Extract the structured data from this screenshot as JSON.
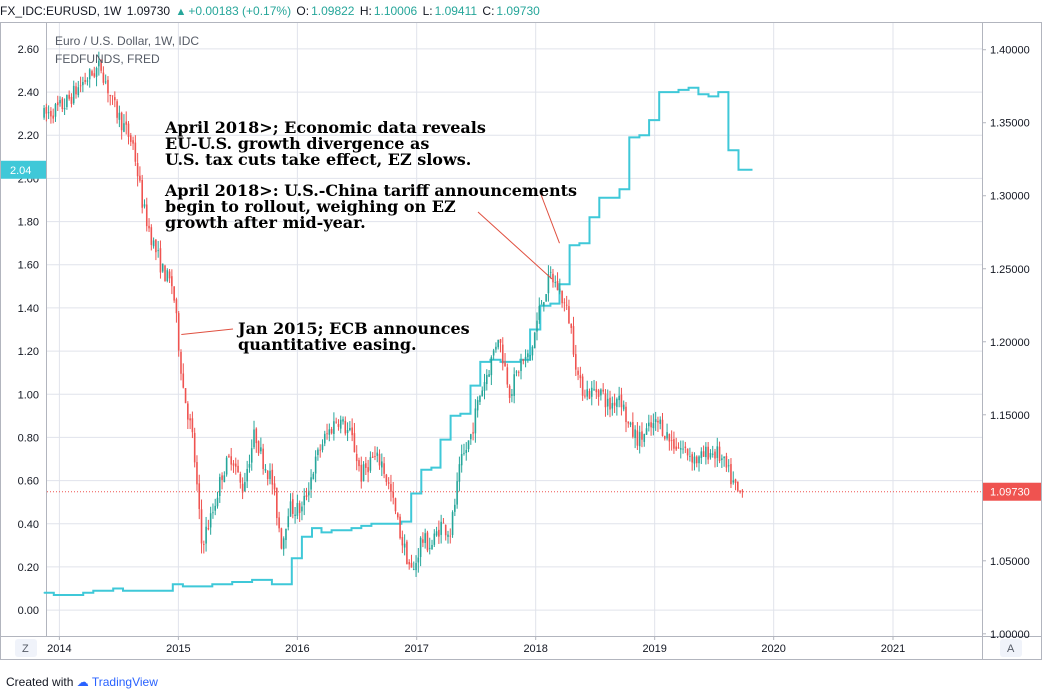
{
  "header": {
    "symbol": "FX_IDC:EURUSD, 1W",
    "last": "1.09730",
    "change": "+0.00183 (+0.17%)",
    "o_label": "O:",
    "o_value": "1.09822",
    "h_label": "H:",
    "h_value": "1.10006",
    "l_label": "L:",
    "l_value": "1.09411",
    "c_label": "C:",
    "c_value": "1.09730"
  },
  "footer": {
    "created_with": "Created with",
    "brand": "TradingView"
  },
  "buttons": {
    "left": "Z",
    "right": "A"
  },
  "colors": {
    "up": "#26a69a",
    "down": "#ef5350",
    "fedfunds": "#3fc8d8",
    "grid": "#e0e3eb",
    "price_line": "#ef5350",
    "annotation_line": "#e05040"
  },
  "chart_data": {
    "type": "line",
    "legend": [
      "Euro / U.S. Dollar, 1W, IDC",
      "FEDFUNDS, FRED"
    ],
    "x_ticks": [
      "2014",
      "2015",
      "2016",
      "2017",
      "2018",
      "2019",
      "2020",
      "2021"
    ],
    "left_axis": {
      "ylim": [
        -0.12,
        2.72
      ],
      "ticks": [
        "2.60",
        "2.40",
        "2.20",
        "2.00",
        "1.80",
        "1.60",
        "1.40",
        "1.20",
        "1.00",
        "0.80",
        "0.60",
        "0.40",
        "0.20",
        "0.00"
      ]
    },
    "right_axis": {
      "ylim": [
        0.9985,
        1.4183
      ],
      "ticks": [
        "1.40000",
        "1.35000",
        "1.30000",
        "1.25000",
        "1.20000",
        "1.15000",
        "1.10000",
        "1.05000",
        "1.00000"
      ]
    },
    "last_price_label": "1.09730",
    "fedfunds_last_label": "2.04",
    "series": [
      {
        "name": "FEDFUNDS, FRED",
        "axis": "left",
        "x": [
          "2013-11-15",
          "2013-12-15",
          "2014-01-15",
          "2014-02-15",
          "2014-03-15",
          "2014-04-15",
          "2014-05-15",
          "2014-06-15",
          "2014-07-15",
          "2014-08-15",
          "2014-09-15",
          "2014-10-15",
          "2014-11-15",
          "2014-12-15",
          "2015-01-15",
          "2015-02-15",
          "2015-03-15",
          "2015-04-15",
          "2015-05-15",
          "2015-06-15",
          "2015-07-15",
          "2015-08-15",
          "2015-09-15",
          "2015-10-15",
          "2015-11-15",
          "2015-12-15",
          "2016-01-15",
          "2016-02-15",
          "2016-03-15",
          "2016-04-15",
          "2016-05-15",
          "2016-06-15",
          "2016-07-15",
          "2016-08-15",
          "2016-09-15",
          "2016-10-15",
          "2016-11-15",
          "2016-12-15",
          "2017-01-15",
          "2017-02-15",
          "2017-03-15",
          "2017-04-15",
          "2017-05-15",
          "2017-06-15",
          "2017-07-15",
          "2017-08-15",
          "2017-09-15",
          "2017-10-15",
          "2017-11-15",
          "2017-12-15",
          "2018-01-15",
          "2018-02-15",
          "2018-03-15",
          "2018-04-15",
          "2018-05-15",
          "2018-06-15",
          "2018-07-15",
          "2018-08-15",
          "2018-09-15",
          "2018-10-15",
          "2018-11-15",
          "2018-12-15",
          "2019-01-15",
          "2019-02-15",
          "2019-03-15",
          "2019-04-15",
          "2019-05-15",
          "2019-06-15",
          "2019-07-15",
          "2019-08-15",
          "2019-09-15"
        ],
        "values": [
          0.08,
          0.07,
          0.07,
          0.07,
          0.08,
          0.09,
          0.09,
          0.1,
          0.09,
          0.09,
          0.09,
          0.09,
          0.09,
          0.12,
          0.11,
          0.11,
          0.11,
          0.12,
          0.12,
          0.13,
          0.13,
          0.14,
          0.14,
          0.12,
          0.12,
          0.24,
          0.34,
          0.38,
          0.36,
          0.37,
          0.37,
          0.38,
          0.39,
          0.4,
          0.4,
          0.4,
          0.41,
          0.54,
          0.65,
          0.66,
          0.79,
          0.9,
          0.91,
          1.04,
          1.15,
          1.16,
          1.15,
          1.15,
          1.16,
          1.3,
          1.41,
          1.42,
          1.51,
          1.69,
          1.7,
          1.82,
          1.91,
          1.91,
          1.95,
          2.19,
          2.2,
          2.27,
          2.4,
          2.4,
          2.41,
          2.42,
          2.39,
          2.38,
          2.4,
          2.13,
          2.04
        ]
      },
      {
        "name": "Euro / U.S. Dollar, 1W, IDC",
        "axis": "right",
        "x": [
          "2013-11-15",
          "2014-01-15",
          "2014-03-15",
          "2014-05-08",
          "2014-06-15",
          "2014-08-15",
          "2014-09-15",
          "2014-10-15",
          "2014-11-15",
          "2014-12-15",
          "2015-01-15",
          "2015-02-15",
          "2015-03-13",
          "2015-04-15",
          "2015-05-15",
          "2015-06-15",
          "2015-07-15",
          "2015-08-24",
          "2015-09-15",
          "2015-10-15",
          "2015-11-15",
          "2015-12-03",
          "2016-01-15",
          "2016-02-15",
          "2016-03-15",
          "2016-05-03",
          "2016-06-15",
          "2016-07-15",
          "2016-08-15",
          "2016-09-15",
          "2016-10-15",
          "2016-11-15",
          "2016-12-20",
          "2017-01-15",
          "2017-02-15",
          "2017-03-15",
          "2017-04-15",
          "2017-05-15",
          "2017-06-15",
          "2017-07-15",
          "2017-08-15",
          "2017-09-08",
          "2017-10-15",
          "2017-11-15",
          "2017-12-15",
          "2018-01-15",
          "2018-02-16",
          "2018-03-15",
          "2018-04-15",
          "2018-05-15",
          "2018-06-15",
          "2018-07-15",
          "2018-08-15",
          "2018-09-15",
          "2018-10-15",
          "2018-11-15",
          "2018-12-15",
          "2019-01-15",
          "2019-02-15",
          "2019-03-15",
          "2019-04-15",
          "2019-05-15",
          "2019-06-15",
          "2019-07-15",
          "2019-08-15",
          "2019-09-15",
          "2019-09-27"
        ],
        "values": [
          1.355,
          1.362,
          1.378,
          1.389,
          1.362,
          1.335,
          1.292,
          1.268,
          1.248,
          1.238,
          1.17,
          1.132,
          1.062,
          1.082,
          1.11,
          1.123,
          1.098,
          1.138,
          1.12,
          1.105,
          1.06,
          1.086,
          1.085,
          1.11,
          1.13,
          1.148,
          1.135,
          1.108,
          1.12,
          1.118,
          1.095,
          1.065,
          1.04,
          1.065,
          1.06,
          1.075,
          1.07,
          1.115,
          1.135,
          1.165,
          1.185,
          1.205,
          1.165,
          1.185,
          1.19,
          1.225,
          1.245,
          1.235,
          1.215,
          1.17,
          1.165,
          1.168,
          1.155,
          1.165,
          1.14,
          1.133,
          1.14,
          1.145,
          1.133,
          1.128,
          1.124,
          1.118,
          1.125,
          1.123,
          1.11,
          1.095,
          1.097
        ]
      }
    ],
    "annotations": [
      {
        "lines": [
          "April 2018>; Economic data reveals",
          "EU-U.S. growth divergence as",
          "U.S. tax cuts take effect, EZ slows."
        ]
      },
      {
        "lines": [
          "April 2018>: U.S.-China tariff announcements",
          "begin to rollout, weighing on EZ",
          "growth after mid-year."
        ]
      },
      {
        "lines": [
          "Jan 2015; ECB announces",
          "quantitative easing."
        ]
      }
    ]
  }
}
